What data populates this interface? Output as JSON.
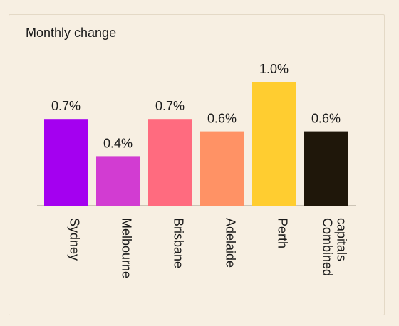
{
  "chart_data": {
    "type": "bar",
    "title": "Monthly change",
    "categories": [
      "Sydney",
      "Melbourne",
      "Brisbane",
      "Adelaide",
      "Perth",
      "Combined capitals"
    ],
    "category_lines": [
      [
        "Sydney"
      ],
      [
        "Melbourne"
      ],
      [
        "Brisbane"
      ],
      [
        "Adelaide"
      ],
      [
        "Perth"
      ],
      [
        "Combined",
        "capitals"
      ]
    ],
    "values": [
      0.7,
      0.4,
      0.7,
      0.6,
      1.0,
      0.6
    ],
    "value_labels": [
      "0.7%",
      "0.4%",
      "0.7%",
      "0.6%",
      "1.0%",
      "0.6%"
    ],
    "colors": [
      "#a400f0",
      "#d23cd2",
      "#ff6b7f",
      "#ff9265",
      "#ffcd30",
      "#1f170a"
    ],
    "ylim": [
      0,
      1.0
    ],
    "xlabel": "",
    "ylabel": "",
    "grid": false,
    "label_orientation": "vertical-rotated-clockwise",
    "axis_color": "#bdb6a8"
  }
}
